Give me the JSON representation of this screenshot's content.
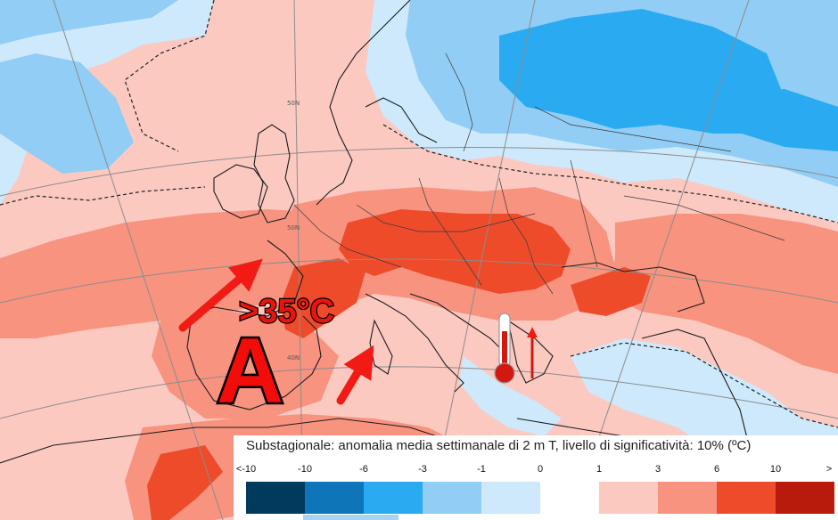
{
  "map": {
    "overlay": {
      "temperature_label": ">35°C",
      "anticyclone_label": "A"
    },
    "graticule_labels": [
      "50N",
      "50N",
      "40N"
    ],
    "icons": {
      "thermometer": "thermometer-icon",
      "arrows": "red-arrow-icon"
    },
    "colors": {
      "arrow": "#f21a14",
      "label_red": "#e8150f"
    }
  },
  "legend": {
    "title": "Substagionale: anomalia media settimanale di 2 m T, livello di significatività: 10% (ºC)",
    "ticks": [
      "<-10",
      "-10",
      "-6",
      "-3",
      "-1",
      "0",
      "1",
      "3",
      "6",
      "10",
      ">"
    ],
    "colors": [
      "#003b5e",
      "#0d75b8",
      "#2aaaf0",
      "#91cdf5",
      "#cde9fb",
      "#ffffff",
      "#fcc9c1",
      "#f7937f",
      "#ee4b2b",
      "#b81a0c",
      "#6e1206"
    ]
  }
}
